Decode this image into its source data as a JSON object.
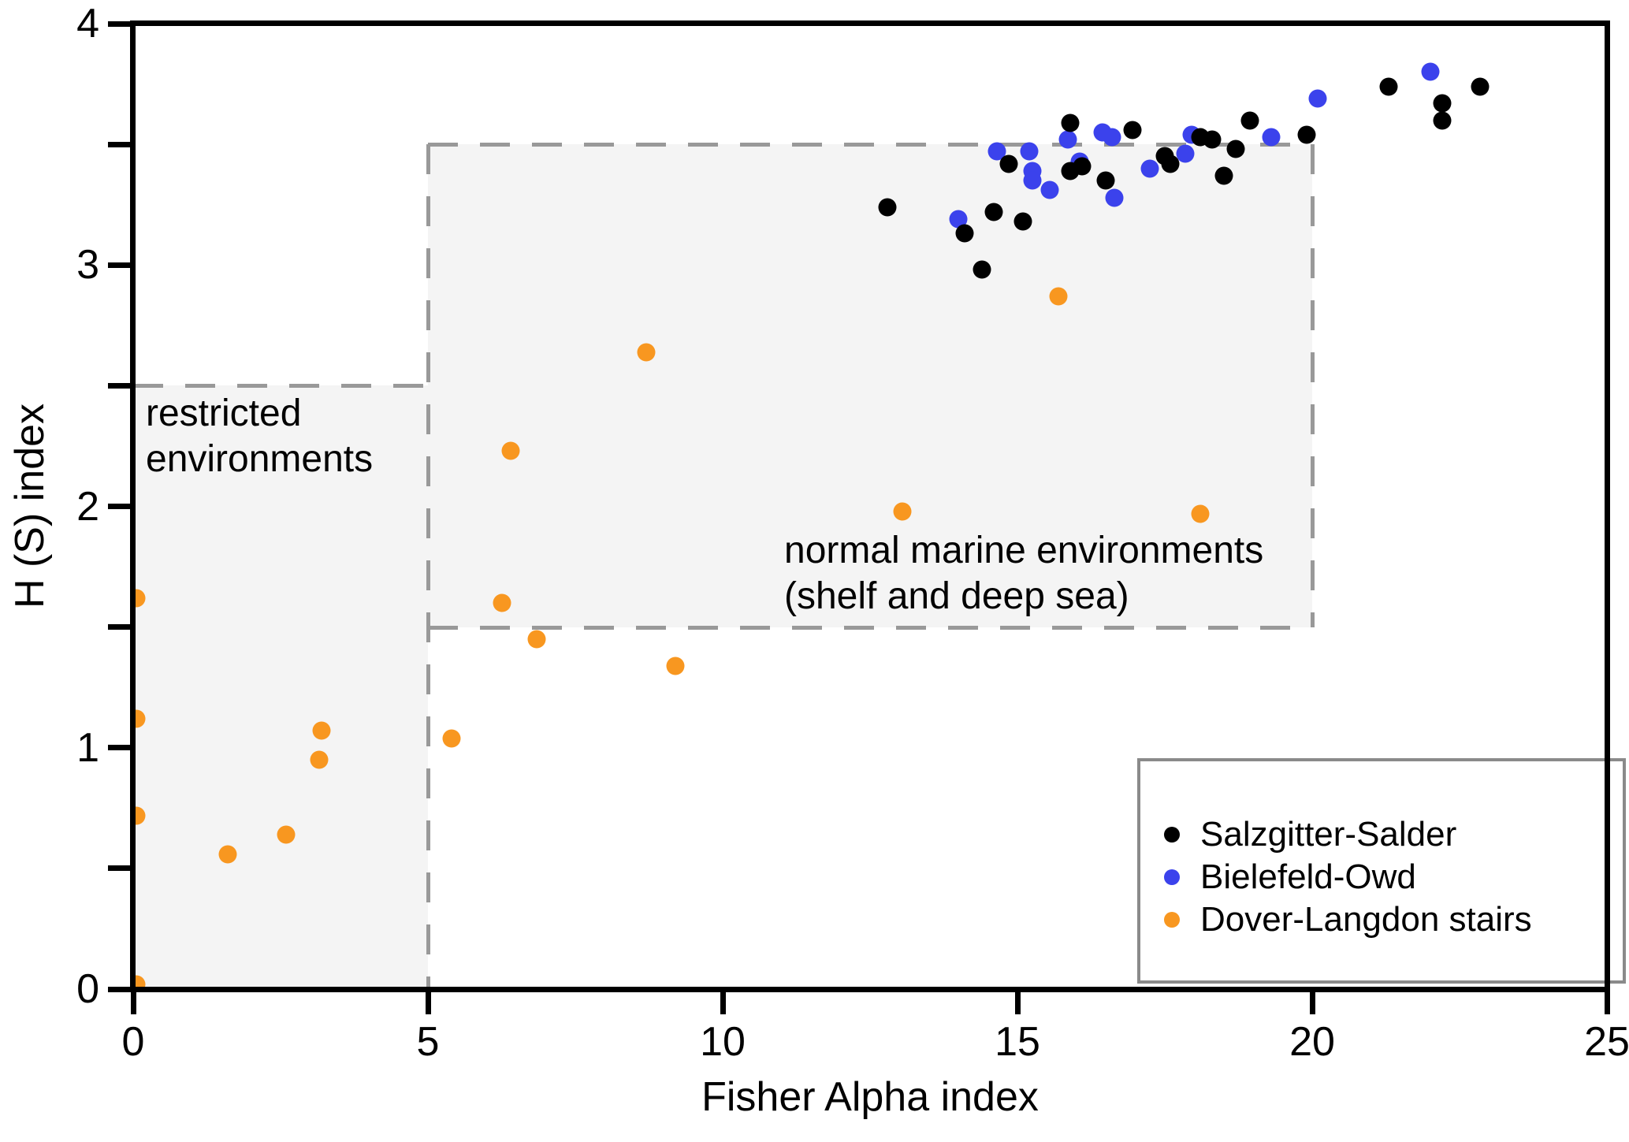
{
  "chart_data": {
    "type": "scatter",
    "title": "",
    "xlabel": "Fisher Alpha index",
    "ylabel": "H (S) index",
    "xlim": [
      0,
      25
    ],
    "ylim": [
      0,
      4
    ],
    "x_ticks": [
      0,
      5,
      10,
      15,
      20,
      25
    ],
    "y_ticks_labeled": [
      0,
      1,
      2,
      3,
      4
    ],
    "y_ticks_minor": [
      0.5,
      1.5,
      2.5,
      3.5
    ],
    "grid": false,
    "legend_position": "lower right",
    "regions": [
      {
        "id": "restricted",
        "label_lines": [
          "restricted",
          "environments"
        ],
        "x": [
          0,
          5
        ],
        "y": [
          0,
          2.5
        ],
        "fill": "#f4f4f4",
        "border": "#999999"
      },
      {
        "id": "normal-marine",
        "label_lines": [
          "normal marine environments",
          "(shelf and deep sea)"
        ],
        "x": [
          5,
          20
        ],
        "y": [
          1.5,
          3.5
        ],
        "fill": "#f4f4f4",
        "border": "#999999"
      }
    ],
    "series": [
      {
        "name": "Salzgitter-Salder",
        "color": "#000000",
        "points": [
          [
            12.8,
            3.24
          ],
          [
            14.1,
            3.13
          ],
          [
            14.4,
            2.98
          ],
          [
            14.6,
            3.22
          ],
          [
            14.85,
            3.42
          ],
          [
            15.1,
            3.18
          ],
          [
            15.9,
            3.59
          ],
          [
            15.9,
            3.39
          ],
          [
            16.1,
            3.41
          ],
          [
            16.5,
            3.35
          ],
          [
            16.95,
            3.56
          ],
          [
            17.5,
            3.45
          ],
          [
            17.6,
            3.42
          ],
          [
            18.1,
            3.53
          ],
          [
            18.3,
            3.52
          ],
          [
            18.5,
            3.37
          ],
          [
            18.7,
            3.48
          ],
          [
            18.95,
            3.6
          ],
          [
            19.9,
            3.54
          ],
          [
            21.3,
            3.74
          ],
          [
            22.2,
            3.67
          ],
          [
            22.2,
            3.6
          ],
          [
            22.85,
            3.74
          ]
        ]
      },
      {
        "name": "Bielefeld-Owd",
        "color": "#3b42ec",
        "points": [
          [
            14.0,
            3.19
          ],
          [
            14.65,
            3.47
          ],
          [
            15.2,
            3.47
          ],
          [
            15.25,
            3.39
          ],
          [
            15.25,
            3.35
          ],
          [
            15.55,
            3.31
          ],
          [
            15.85,
            3.52
          ],
          [
            16.05,
            3.43
          ],
          [
            16.45,
            3.55
          ],
          [
            16.6,
            3.53
          ],
          [
            16.65,
            3.28
          ],
          [
            17.25,
            3.4
          ],
          [
            17.85,
            3.46
          ],
          [
            17.95,
            3.54
          ],
          [
            19.3,
            3.53
          ],
          [
            20.1,
            3.69
          ],
          [
            22.0,
            3.8
          ]
        ]
      },
      {
        "name": "Dover-Langdon stairs",
        "color": "#f89720",
        "points": [
          [
            0.05,
            1.62
          ],
          [
            0.05,
            1.12
          ],
          [
            0.05,
            0.72
          ],
          [
            0.05,
            0.02
          ],
          [
            1.6,
            0.56
          ],
          [
            2.6,
            0.64
          ],
          [
            3.2,
            1.07
          ],
          [
            3.15,
            0.95
          ],
          [
            5.4,
            1.04
          ],
          [
            6.4,
            2.23
          ],
          [
            6.25,
            1.6
          ],
          [
            6.85,
            1.45
          ],
          [
            8.7,
            2.64
          ],
          [
            9.2,
            1.34
          ],
          [
            13.05,
            1.98
          ],
          [
            15.7,
            2.87
          ],
          [
            18.1,
            1.97
          ]
        ]
      }
    ]
  }
}
